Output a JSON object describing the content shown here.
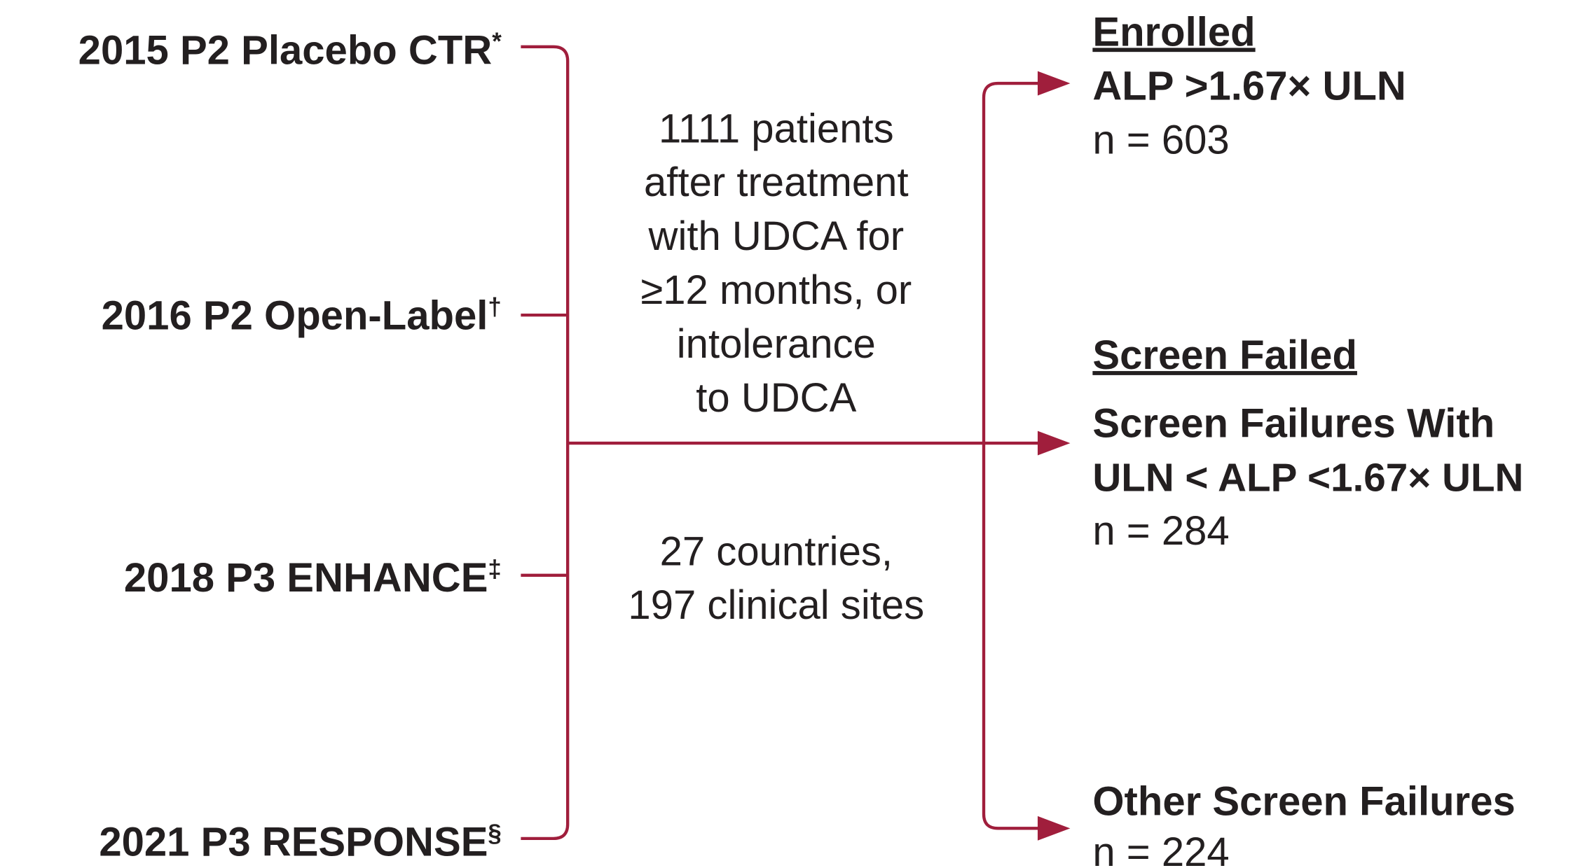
{
  "studies": [
    {
      "name": "2015 P2 Placebo CTR",
      "mark": "*"
    },
    {
      "name": "2016 P2 Open-Label",
      "mark": "†"
    },
    {
      "name": "2018 P3 ENHANCE",
      "mark": "‡"
    },
    {
      "name": "2021 P3 RESPONSE",
      "mark": "§"
    }
  ],
  "population": {
    "lines": [
      "1111 patients",
      "after treatment",
      "with UDCA for",
      "≥12 months, or",
      "intolerance",
      "to UDCA"
    ]
  },
  "sites": {
    "lines": [
      "27 countries,",
      "197 clinical sites"
    ]
  },
  "outcomes": {
    "enrolled": {
      "heading": "Enrolled",
      "criterion": "ALP >1.67× ULN",
      "count": "n = 603"
    },
    "screen_failed": {
      "heading": "Screen Failed",
      "criterion": [
        "Screen Failures With",
        "ULN < ALP <1.67× ULN"
      ],
      "count": "n = 284"
    },
    "other": {
      "heading": "Other Screen Failures",
      "count": "n = 224"
    }
  }
}
